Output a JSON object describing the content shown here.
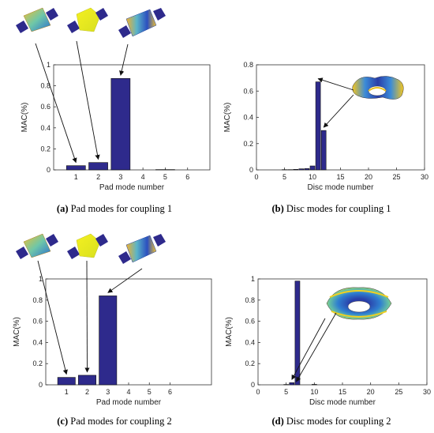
{
  "colors": {
    "bar": "#2e2a8c",
    "bar_edge": "#101010",
    "axis": "#333333"
  },
  "captions": [
    {
      "tag": "(a)",
      "text": "Pad modes for coupling 1"
    },
    {
      "tag": "(b)",
      "text": "Disc modes for coupling 1"
    },
    {
      "tag": "(c)",
      "text": "Pad modes for coupling 2"
    },
    {
      "tag": "(d)",
      "text": "Disc modes for coupling 2"
    }
  ],
  "chart_data": [
    {
      "type": "bar",
      "xlabel": "Pad mode number",
      "ylabel": "MAC(%)",
      "xlim": [
        0,
        7
      ],
      "ylim": [
        0,
        1
      ],
      "xticks": [
        1,
        2,
        3,
        4,
        5,
        6
      ],
      "yticks": [
        0,
        0.2,
        0.4,
        0.6,
        0.8,
        1
      ],
      "ytick_labels": [
        "0",
        "0.2",
        "0.4",
        "0.6",
        "0.8",
        "1"
      ],
      "x": [
        1,
        2,
        3,
        4,
        5,
        6
      ],
      "values": [
        0.04,
        0.07,
        0.87,
        0.0,
        0.003,
        0.0
      ],
      "annotations": [
        {
          "from": "pad-mode-1-icon",
          "to_x": 1
        },
        {
          "from": "pad-mode-2-icon",
          "to_x": 2
        },
        {
          "from": "pad-mode-3-icon",
          "to_x": 3
        }
      ]
    },
    {
      "type": "bar",
      "xlabel": "Disc mode number",
      "ylabel": "MAC(%)",
      "xlim": [
        0,
        30
      ],
      "ylim": [
        0,
        0.8
      ],
      "xticks": [
        0,
        5,
        10,
        15,
        20,
        25,
        30
      ],
      "yticks": [
        0,
        0.2,
        0.4,
        0.6,
        0.8
      ],
      "ytick_labels": [
        "0",
        "0.2",
        "0.4",
        "0.6",
        "0.8"
      ],
      "x": [
        1,
        2,
        3,
        4,
        5,
        6,
        7,
        8,
        9,
        10,
        11,
        12,
        13,
        14,
        15
      ],
      "values": [
        0.0,
        0.0,
        0.0,
        0.0,
        0.002,
        0.002,
        0.004,
        0.008,
        0.01,
        0.03,
        0.67,
        0.3,
        0.0,
        0.0,
        0.0
      ],
      "annotations": [
        {
          "from": "disc-mode-icon",
          "to_x": 11
        },
        {
          "from": "disc-mode-icon",
          "to_x": 12
        }
      ]
    },
    {
      "type": "bar",
      "xlabel": "Pad mode number",
      "ylabel": "MAC(%)",
      "xlim": [
        0,
        8
      ],
      "ylim": [
        0,
        1
      ],
      "xticks": [
        1,
        2,
        3,
        4,
        5,
        6
      ],
      "yticks": [
        0,
        0.2,
        0.4,
        0.6,
        0.8,
        1
      ],
      "ytick_labels": [
        "0",
        "0.2",
        "0.4",
        "0.6",
        "0.8",
        "1"
      ],
      "x": [
        1,
        2,
        3,
        4,
        5,
        6
      ],
      "values": [
        0.07,
        0.09,
        0.84,
        0.0,
        0.0,
        0.0
      ],
      "annotations": [
        {
          "from": "pad-mode-1-icon",
          "to_x": 1
        },
        {
          "from": "pad-mode-2-icon",
          "to_x": 2
        },
        {
          "from": "pad-mode-3-icon",
          "to_x": 3
        }
      ]
    },
    {
      "type": "bar",
      "xlabel": "Disc mode number",
      "ylabel": "MAC(%)",
      "xlim": [
        0,
        30
      ],
      "ylim": [
        0,
        1
      ],
      "xticks": [
        0,
        5,
        10,
        15,
        20,
        25,
        30
      ],
      "yticks": [
        0,
        0.2,
        0.4,
        0.6,
        0.8,
        1
      ],
      "ytick_labels": [
        "0",
        "0.2",
        "0.4",
        "0.6",
        "0.8",
        "1"
      ],
      "x": [
        5,
        6,
        7,
        8,
        9,
        10,
        11,
        12
      ],
      "values": [
        0.003,
        0.02,
        0.98,
        0.0,
        0.0,
        0.004,
        0.0,
        0.0
      ],
      "annotations": [
        {
          "from": "disc-mode-icon",
          "to_x": 6
        },
        {
          "from": "disc-mode-icon",
          "to_x": 6.8
        }
      ]
    }
  ]
}
